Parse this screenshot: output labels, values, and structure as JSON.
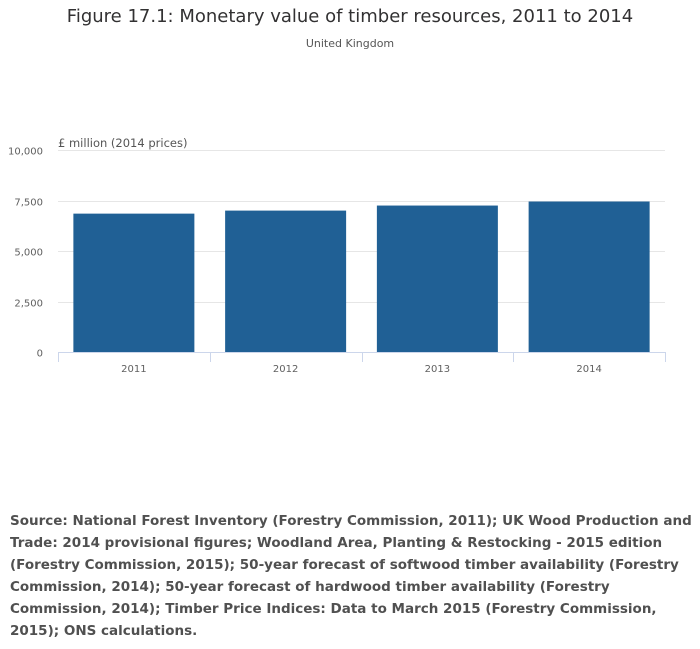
{
  "figure": {
    "title": "Figure 17.1: Monetary value of timber resources, 2011 to 2014",
    "subtitle": "United Kingdom",
    "source": "Source: National Forest Inventory (Forestry Commission, 2011); UK Wood Production and Trade: 2014 provisional figures; Woodland Area, Planting & Restocking - 2015 edition (Forestry Commission, 2015); 50-year forecast of softwood timber availability (Forestry Commission, 2014); 50-year forecast of hardwood timber availability (Forestry Commission, 2014); Timber Price Indices: Data to March 2015 (Forestry Commission, 2015); ONS calculations."
  },
  "chart_data": {
    "type": "bar",
    "title": "Figure 17.1: Monetary value of timber resources, 2011 to 2014",
    "subtitle": "United Kingdom",
    "ylabel": "£ million (2014 prices)",
    "xlabel": "",
    "categories": [
      "2011",
      "2012",
      "2013",
      "2014"
    ],
    "series": [
      {
        "values": [
          6850,
          7000,
          7250,
          7450
        ]
      }
    ],
    "ylim": [
      0,
      10000
    ],
    "yticks": [
      "0",
      "2,500",
      "5,000",
      "7,500",
      "10,000"
    ],
    "ytick_values": [
      0,
      2500,
      5000,
      7500,
      10000
    ],
    "grid": true,
    "legend": "none",
    "bar_color": "#206095",
    "grid_color": "#e6e6e6",
    "axis_color": "#ccd6eb"
  }
}
